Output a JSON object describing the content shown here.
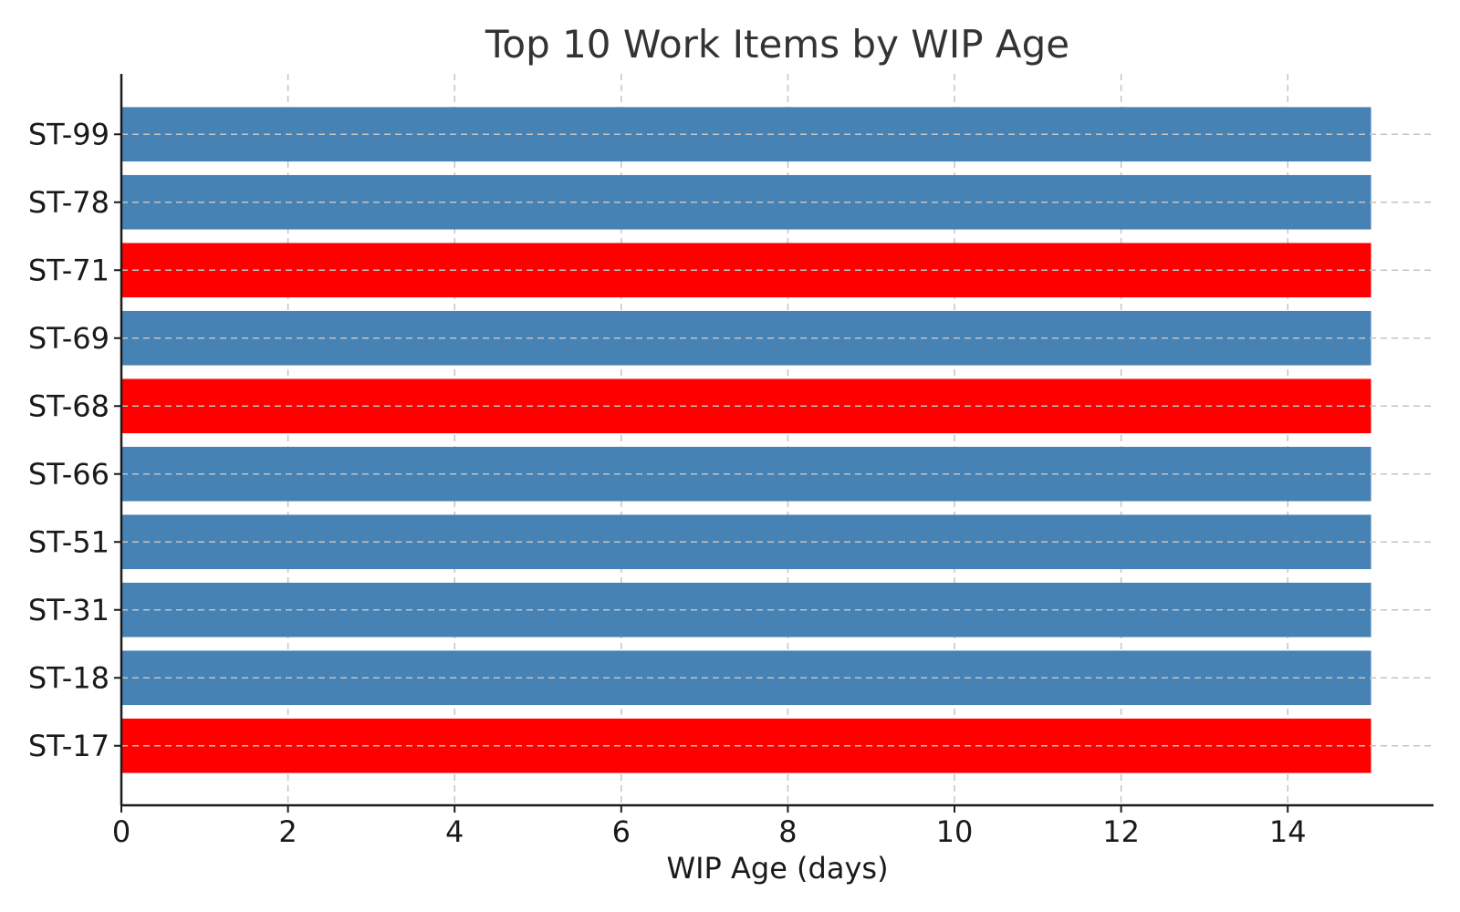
{
  "chart_data": {
    "type": "bar",
    "orientation": "horizontal",
    "title": "Top 10 Work Items by WIP Age",
    "xlabel": "WIP Age (days)",
    "ylabel": "",
    "xlim": [
      0,
      15.75
    ],
    "xticks": [
      0,
      2,
      4,
      6,
      8,
      10,
      12,
      14
    ],
    "grid": true,
    "categories": [
      "ST-99",
      "ST-78",
      "ST-71",
      "ST-69",
      "ST-68",
      "ST-66",
      "ST-51",
      "ST-31",
      "ST-18",
      "ST-17"
    ],
    "values": [
      15,
      15,
      15,
      15,
      15,
      15,
      15,
      15,
      15,
      15
    ],
    "bar_colors": [
      "#4682b4",
      "#4682b4",
      "#ff0000",
      "#4682b4",
      "#ff0000",
      "#4682b4",
      "#4682b4",
      "#4682b4",
      "#4682b4",
      "#ff0000"
    ]
  },
  "colors": {
    "normal": "#4682b4",
    "highlight": "#ff0000"
  }
}
